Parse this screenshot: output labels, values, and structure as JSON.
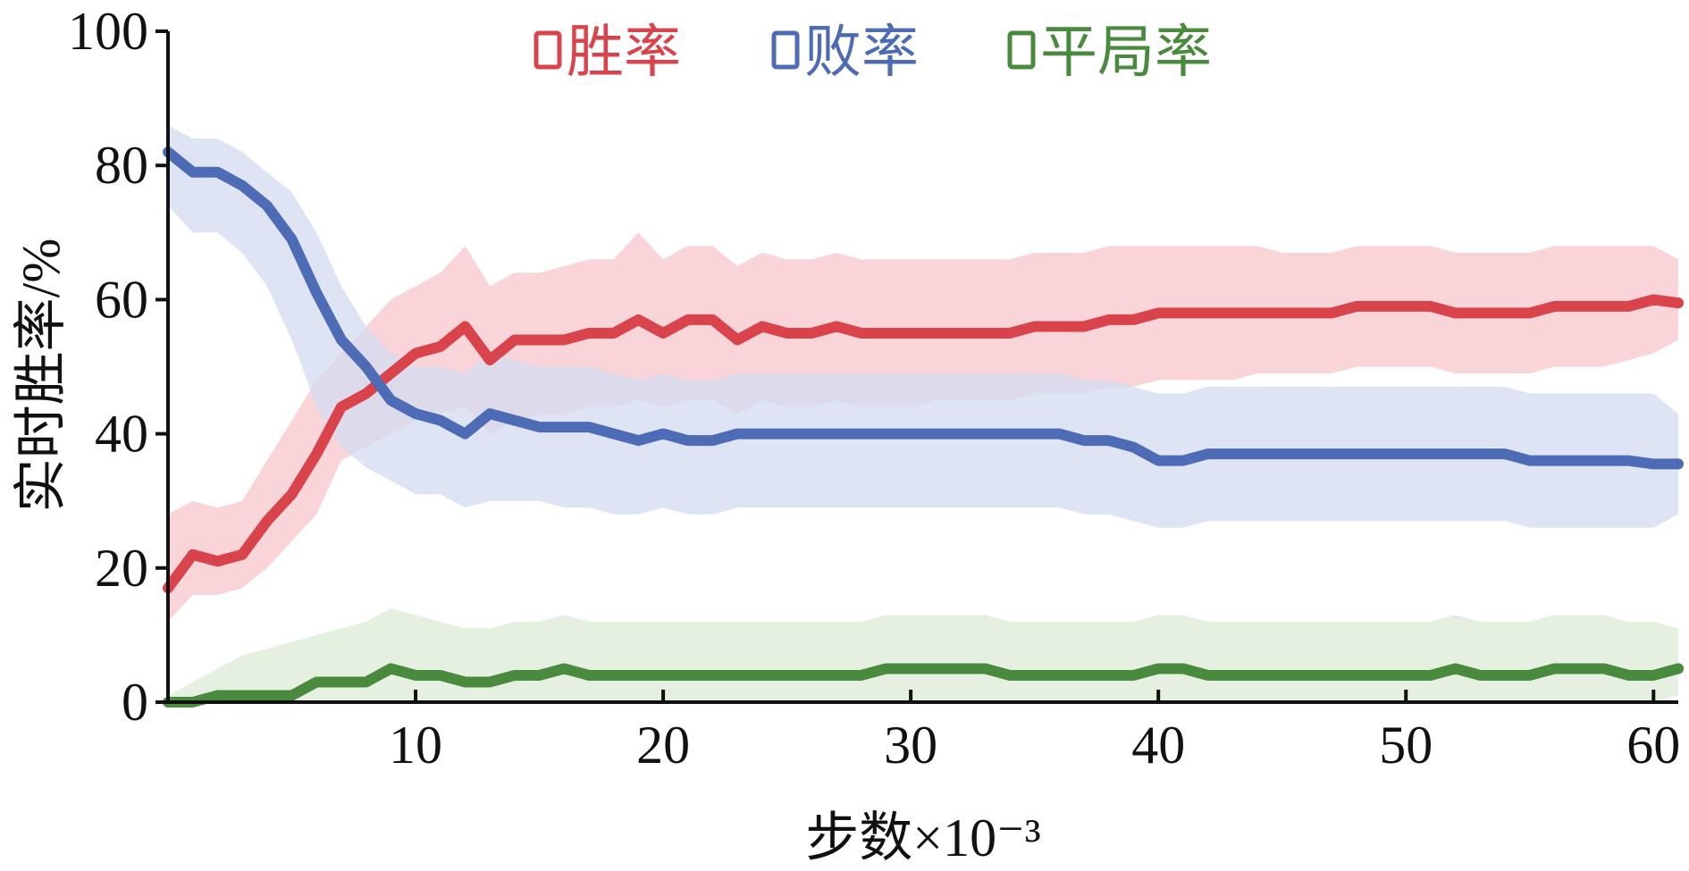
{
  "chart_data": {
    "type": "line",
    "xlabel": "步数×10⁻³",
    "ylabel": "实时胜率/%",
    "xlim": [
      0,
      61
    ],
    "ylim": [
      0,
      100
    ],
    "xticks": [
      10,
      20,
      30,
      40,
      50,
      60
    ],
    "yticks": [
      0,
      20,
      40,
      60,
      80,
      100
    ],
    "grid": false,
    "legend_position": "top-center",
    "x": [
      0,
      1,
      2,
      3,
      4,
      5,
      6,
      7,
      8,
      9,
      10,
      11,
      12,
      13,
      14,
      15,
      16,
      17,
      18,
      19,
      20,
      21,
      22,
      23,
      24,
      25,
      26,
      27,
      28,
      29,
      30,
      31,
      32,
      33,
      34,
      35,
      36,
      37,
      38,
      39,
      40,
      41,
      42,
      43,
      44,
      45,
      46,
      47,
      48,
      49,
      50,
      51,
      52,
      53,
      54,
      55,
      56,
      57,
      58,
      59,
      60,
      61
    ],
    "series": [
      {
        "name": "胜率",
        "color": "#d9434b",
        "band_color": "#f7c7cc",
        "values": [
          17,
          22,
          21,
          22,
          27,
          31,
          37,
          44,
          46,
          49,
          52,
          53,
          56,
          51,
          54,
          54,
          54,
          55,
          55,
          57,
          55,
          57,
          57,
          54,
          56,
          55,
          55,
          56,
          55,
          55,
          55,
          55,
          55,
          55,
          55,
          56,
          56,
          56,
          57,
          57,
          58,
          58,
          58,
          58,
          58,
          58,
          58,
          58,
          59,
          59,
          59,
          59,
          58,
          58,
          58,
          58,
          59,
          59,
          59,
          59,
          60,
          59.5
        ],
        "band_low": [
          12,
          16,
          16,
          17,
          20,
          24,
          28,
          36,
          38,
          40,
          42,
          43,
          44,
          40,
          42,
          43,
          43,
          44,
          44,
          45,
          44,
          45,
          45,
          43,
          45,
          44,
          44,
          45,
          44,
          44,
          44,
          45,
          45,
          45,
          45,
          46,
          46,
          46,
          47,
          47,
          48,
          48,
          48,
          48,
          49,
          49,
          49,
          49,
          50,
          50,
          50,
          50,
          49,
          49,
          49,
          49,
          50,
          50,
          50,
          51,
          52,
          54
        ],
        "band_high": [
          28,
          30,
          29,
          30,
          36,
          42,
          48,
          52,
          56,
          60,
          62,
          64,
          68,
          62,
          64,
          64,
          65,
          66,
          66,
          70,
          66,
          68,
          68,
          65,
          67,
          66,
          66,
          67,
          66,
          66,
          66,
          66,
          66,
          66,
          66,
          67,
          67,
          67,
          68,
          68,
          68,
          68,
          68,
          68,
          68,
          67,
          67,
          67,
          68,
          68,
          68,
          68,
          67,
          67,
          67,
          67,
          68,
          68,
          68,
          68,
          68,
          66
        ]
      },
      {
        "name": "败率",
        "color": "#4e6cb5",
        "band_color": "#d3dbf0",
        "values": [
          82,
          79,
          79,
          77,
          74,
          69,
          61,
          54,
          50,
          45,
          43,
          42,
          40,
          43,
          42,
          41,
          41,
          41,
          40,
          39,
          40,
          39,
          39,
          40,
          40,
          40,
          40,
          40,
          40,
          40,
          40,
          40,
          40,
          40,
          40,
          40,
          40,
          39,
          39,
          38,
          36,
          36,
          37,
          37,
          37,
          37,
          37,
          37,
          37,
          37,
          37,
          37,
          37,
          37,
          37,
          36,
          36,
          36,
          36,
          36,
          35.5,
          35.5
        ],
        "band_low": [
          74,
          70,
          70,
          67,
          62,
          54,
          44,
          38,
          35,
          33,
          31,
          31,
          29,
          30,
          30,
          30,
          29,
          29,
          28,
          28,
          29,
          28,
          28,
          29,
          29,
          29,
          29,
          29,
          29,
          29,
          29,
          29,
          29,
          29,
          29,
          29,
          29,
          28,
          28,
          27,
          26,
          26,
          27,
          27,
          27,
          27,
          27,
          27,
          27,
          27,
          27,
          27,
          27,
          27,
          27,
          26,
          26,
          26,
          26,
          26,
          26,
          28
        ],
        "band_high": [
          86,
          84,
          84,
          82,
          79,
          76,
          70,
          62,
          56,
          52,
          50,
          50,
          49,
          52,
          51,
          50,
          50,
          50,
          49,
          48,
          49,
          48,
          48,
          49,
          49,
          49,
          49,
          49,
          49,
          49,
          49,
          49,
          49,
          49,
          49,
          49,
          49,
          48,
          48,
          47,
          46,
          46,
          47,
          47,
          47,
          47,
          47,
          47,
          47,
          47,
          47,
          47,
          47,
          47,
          47,
          46,
          46,
          46,
          46,
          46,
          46,
          43
        ]
      },
      {
        "name": "平局率",
        "color": "#4a8a3e",
        "band_color": "#dcebd7",
        "values": [
          0,
          0,
          1,
          1,
          1,
          1,
          3,
          3,
          3,
          5,
          4,
          4,
          3,
          3,
          4,
          4,
          5,
          4,
          4,
          4,
          4,
          4,
          4,
          4,
          4,
          4,
          4,
          4,
          4,
          5,
          5,
          5,
          5,
          5,
          4,
          4,
          4,
          4,
          4,
          4,
          5,
          5,
          4,
          4,
          4,
          4,
          4,
          4,
          4,
          4,
          4,
          4,
          5,
          4,
          4,
          4,
          5,
          5,
          5,
          4,
          4,
          5
        ],
        "band_low": [
          0,
          0,
          0,
          0,
          0,
          0,
          0,
          0,
          0,
          0,
          0,
          0,
          0,
          0,
          0,
          0,
          0,
          0,
          0,
          0,
          0,
          0,
          0,
          0,
          0,
          0,
          0,
          0,
          0,
          0,
          0,
          0,
          0,
          0,
          0,
          0,
          0,
          0,
          0,
          0,
          0,
          0,
          0,
          0,
          0,
          0,
          0,
          0,
          0,
          0,
          0,
          0,
          0,
          0,
          0,
          0,
          0,
          0,
          0,
          0,
          0,
          1
        ],
        "band_high": [
          1,
          3,
          5,
          7,
          8,
          9,
          10,
          11,
          12,
          14,
          13,
          12,
          11,
          11,
          12,
          12,
          13,
          12,
          12,
          12,
          12,
          12,
          12,
          12,
          12,
          12,
          12,
          12,
          12,
          13,
          13,
          13,
          13,
          13,
          12,
          12,
          12,
          12,
          12,
          12,
          13,
          13,
          12,
          12,
          12,
          12,
          12,
          12,
          12,
          12,
          12,
          12,
          13,
          12,
          12,
          12,
          13,
          13,
          13,
          12,
          12,
          11
        ]
      }
    ]
  }
}
